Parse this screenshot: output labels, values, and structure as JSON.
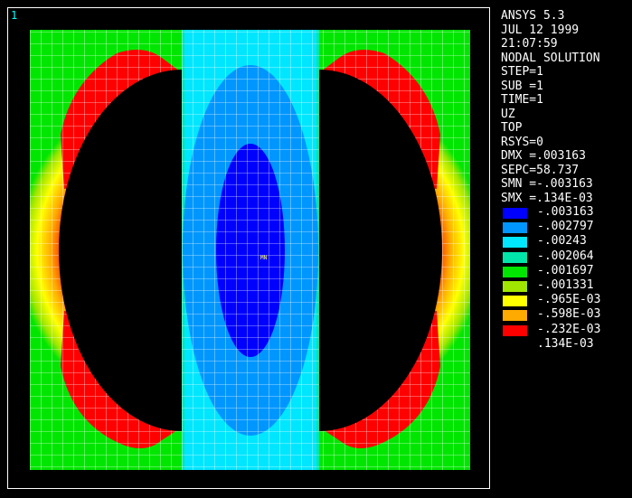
{
  "window_number": "1",
  "info_lines": [
    "ANSYS 5.3",
    "JUL 12 1999",
    "21:07:59",
    "NODAL SOLUTION",
    "STEP=1",
    "SUB =1",
    "TIME=1",
    "UZ",
    "TOP",
    "RSYS=0",
    "DMX =.003163",
    "SEPC=58.737",
    "SMN =-.003163",
    "SMX =.134E-03"
  ],
  "legend": [
    {
      "label": "-.003163",
      "color": "#0000ff"
    },
    {
      "label": "-.002797",
      "color": "#0096ff"
    },
    {
      "label": "-.00243",
      "color": "#00e6ff"
    },
    {
      "label": "-.002064",
      "color": "#00e6aa"
    },
    {
      "label": "-.001697",
      "color": "#00e600"
    },
    {
      "label": "-.001331",
      "color": "#a0e600"
    },
    {
      "label": "-.965E-03",
      "color": "#ffff00"
    },
    {
      "label": "-.598E-03",
      "color": "#ffaa00"
    },
    {
      "label": "-.232E-03",
      "color": "#ff0000"
    },
    {
      "label": ".134E-03",
      "color": null
    }
  ],
  "min_marker": "MN"
}
